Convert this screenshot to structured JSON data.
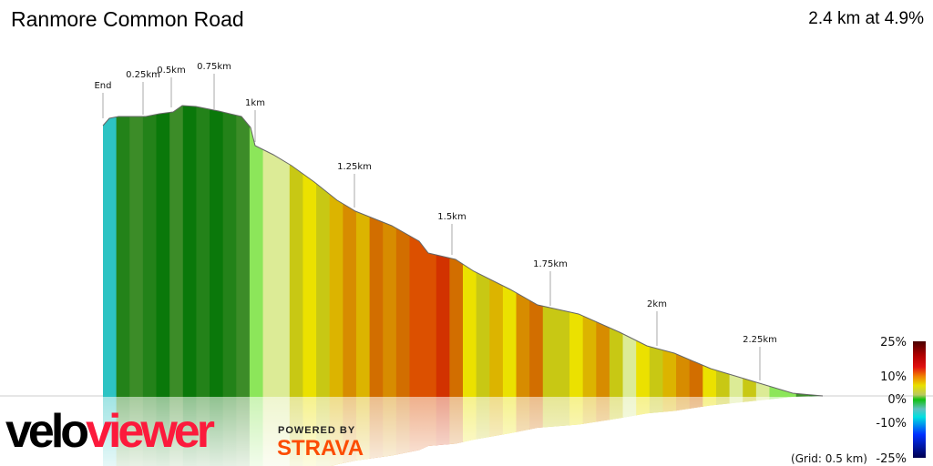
{
  "header": {
    "title": "Ranmore Common Road",
    "summary": "2.4 km at 4.9%"
  },
  "branding": {
    "logo_part1": "velo",
    "logo_part2": "viewer",
    "powered_by": "POWERED BY",
    "strava": "STRAVA",
    "logo_color": "#fc1a3c",
    "strava_color": "#fc4c02"
  },
  "chart_data": {
    "type": "area",
    "title": "Ranmore Common Road",
    "markers": [
      "End",
      "0.25km",
      "0.5km",
      "0.75km",
      "1km",
      "1.25km",
      "1.5km",
      "1.75km",
      "2km",
      "2.25km"
    ],
    "segment_grades_percent": [
      -3,
      1,
      2,
      1,
      0,
      2,
      0,
      1,
      0,
      1,
      2,
      3,
      4,
      4,
      5,
      6,
      5,
      7,
      8,
      7,
      9,
      8,
      9,
      10,
      10,
      11,
      9,
      6,
      5,
      7,
      6,
      8,
      9,
      5,
      5,
      6,
      7,
      8,
      5,
      4,
      6,
      5,
      7,
      8,
      9,
      6,
      5,
      4,
      5,
      4,
      3,
      3,
      2,
      1
    ],
    "legend": {
      "ticks": [
        "25%",
        "10%",
        "0%",
        "-10%",
        "-25%"
      ],
      "grid_note": "(Grid: 0.5 km)",
      "range": [
        -25,
        25
      ]
    }
  }
}
